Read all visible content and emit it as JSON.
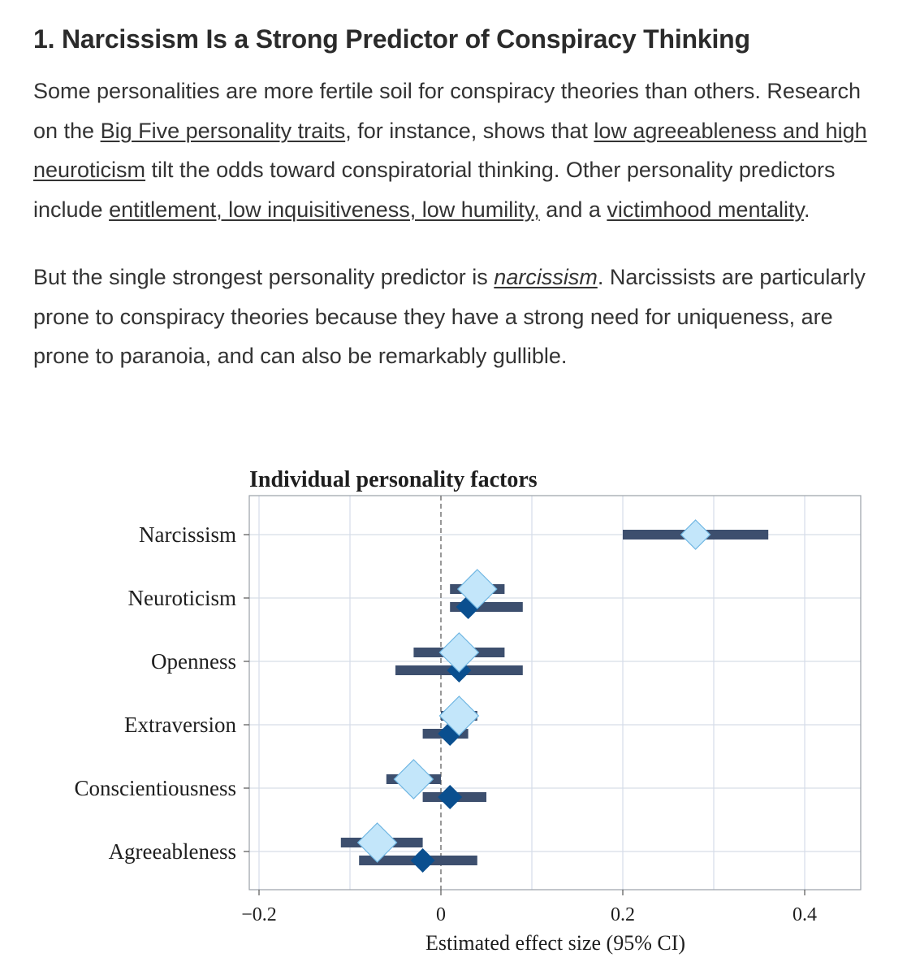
{
  "article": {
    "heading": "1. Narcissism Is a Strong Predictor of Conspiracy Thinking",
    "p1": {
      "t1": "Some personalities are more fertile soil for conspiracy theories than others. Research on the ",
      "link1": "Big Five personality traits",
      "t2": ", for instance, shows that ",
      "link2": "low agreeableness and high neuroticism",
      "t3": " tilt the odds toward conspiratorial thinking. Other personality predictors include ",
      "link3": "entitlement, low inquisitiveness, low humility,",
      "t4": " and a ",
      "link4": "victimhood mentality",
      "t5": "."
    },
    "p2": {
      "t1": "But the single strongest personality predictor is ",
      "link1": "narcissism",
      "t2": ". Narcissists are particularly prone to conspiracy theories because they have a strong need for uniqueness, are prone to paranoia, and can also be remarkably gullible."
    }
  },
  "colors": {
    "ci_bar": "#3d4f6e",
    "light_marker": "#c3e6fa",
    "light_marker_stroke": "#6fb6e2",
    "dark_marker": "#0a4f8f",
    "grid": "#d6dde8",
    "zero_line": "#777777"
  },
  "chart_data": {
    "type": "forest",
    "title": "Individual personality factors",
    "xlabel": "Estimated effect size (95% CI)",
    "xlim": [
      -0.2,
      0.45
    ],
    "xticks": [
      -0.2,
      0,
      0.2,
      0.4
    ],
    "xtick_labels": [
      "−0.2",
      "0",
      "0.2",
      "0.4"
    ],
    "categories": [
      "Narcissism",
      "Neuroticism",
      "Openness",
      "Extraversion",
      "Conscientiousness",
      "Agreeableness"
    ],
    "series": [
      {
        "name": "Estimate A (light diamond)",
        "estimates": [
          0.28,
          0.04,
          0.02,
          0.02,
          -0.03,
          -0.07
        ],
        "ci_low": [
          0.2,
          0.01,
          -0.03,
          0.0,
          -0.06,
          -0.11
        ],
        "ci_high": [
          0.36,
          0.07,
          0.07,
          0.04,
          0.0,
          -0.02
        ]
      },
      {
        "name": "Estimate B (dark diamond)",
        "estimates": [
          null,
          0.03,
          0.02,
          0.01,
          0.01,
          -0.02
        ],
        "ci_low": [
          null,
          0.01,
          -0.05,
          -0.02,
          -0.02,
          -0.09
        ],
        "ci_high": [
          null,
          0.09,
          0.09,
          0.03,
          0.05,
          0.04
        ]
      }
    ]
  }
}
